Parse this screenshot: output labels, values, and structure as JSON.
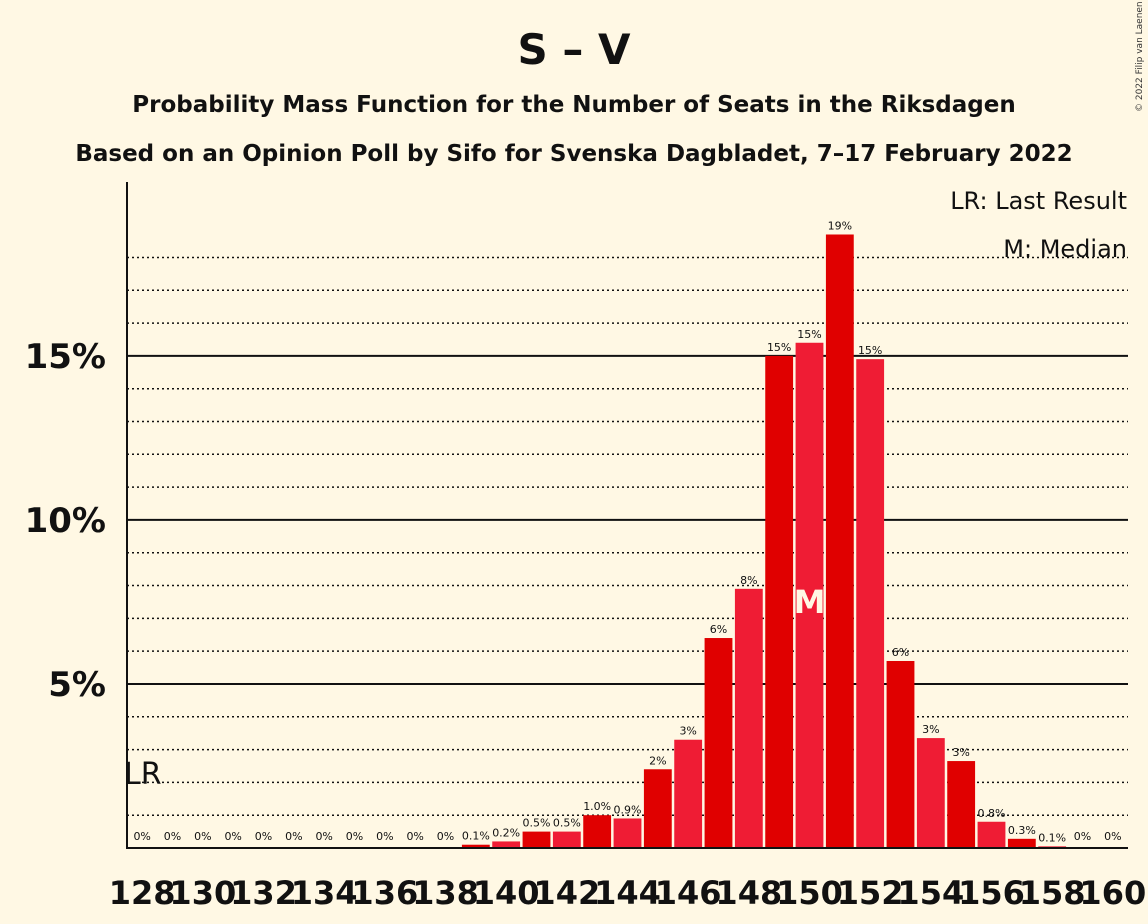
{
  "title": "S – V",
  "subtitle1": "Probability Mass Function for the Number of Seats in the Riksdagen",
  "subtitle2": "Based on an Opinion Poll by Sifo for Svenska Dagbladet, 7–17 February 2022",
  "copyright": "© 2022 Filip van Laenen",
  "legend": {
    "last_result": "LR: Last Result",
    "median": "M: Median"
  },
  "markers": {
    "last_result_label": "LR",
    "last_result_seat": 128,
    "median_label": "M",
    "median_seat": 150
  },
  "colors": {
    "bar_dark": "#e00000",
    "bar_light": "#ef1c34",
    "background": "#fff8e4",
    "axis": "#111111"
  },
  "chart_data": {
    "type": "bar",
    "ylim": [
      0,
      20.3
    ],
    "yticks": [
      {
        "value": 5,
        "label": "5%"
      },
      {
        "value": 10,
        "label": "10%"
      },
      {
        "value": 15,
        "label": "15%"
      }
    ],
    "minor_gridlines": [
      1,
      2,
      3,
      4,
      6,
      7,
      8,
      9,
      11,
      12,
      13,
      14,
      16,
      17,
      18
    ],
    "x_tick_labels": [
      "128",
      "130",
      "132",
      "134",
      "136",
      "138",
      "140",
      "142",
      "144",
      "146",
      "148",
      "150",
      "152",
      "154",
      "156",
      "158",
      "160"
    ],
    "series": [
      {
        "values": [
          {
            "seat": 128,
            "value": 0,
            "label": "0%"
          },
          {
            "seat": 129,
            "value": 0,
            "label": "0%"
          },
          {
            "seat": 130,
            "value": 0,
            "label": "0%"
          },
          {
            "seat": 131,
            "value": 0,
            "label": "0%"
          },
          {
            "seat": 132,
            "value": 0,
            "label": "0%"
          },
          {
            "seat": 133,
            "value": 0,
            "label": "0%"
          },
          {
            "seat": 134,
            "value": 0,
            "label": "0%"
          },
          {
            "seat": 135,
            "value": 0,
            "label": "0%"
          },
          {
            "seat": 136,
            "value": 0,
            "label": "0%"
          },
          {
            "seat": 137,
            "value": 0,
            "label": "0%"
          },
          {
            "seat": 138,
            "value": 0,
            "label": "0%"
          },
          {
            "seat": 139,
            "value": 0.1,
            "label": "0.1%"
          },
          {
            "seat": 140,
            "value": 0.2,
            "label": "0.2%"
          },
          {
            "seat": 141,
            "value": 0.5,
            "label": "0.5%"
          },
          {
            "seat": 142,
            "value": 0.5,
            "label": "0.5%"
          },
          {
            "seat": 143,
            "value": 1.0,
            "label": "1.0%"
          },
          {
            "seat": 144,
            "value": 0.9,
            "label": "0.9%"
          },
          {
            "seat": 145,
            "value": 2.4,
            "label": "2%"
          },
          {
            "seat": 146,
            "value": 3.3,
            "label": "3%"
          },
          {
            "seat": 147,
            "value": 6.4,
            "label": "6%"
          },
          {
            "seat": 148,
            "value": 7.9,
            "label": "8%"
          },
          {
            "seat": 149,
            "value": 15.0,
            "label": "15%"
          },
          {
            "seat": 150,
            "value": 15.4,
            "label": "15%"
          },
          {
            "seat": 151,
            "value": 18.7,
            "label": "19%"
          },
          {
            "seat": 152,
            "value": 14.9,
            "label": "15%"
          },
          {
            "seat": 153,
            "value": 5.7,
            "label": "6%"
          },
          {
            "seat": 154,
            "value": 3.35,
            "label": "3%"
          },
          {
            "seat": 155,
            "value": 2.65,
            "label": "3%"
          },
          {
            "seat": 156,
            "value": 0.8,
            "label": "0.8%"
          },
          {
            "seat": 157,
            "value": 0.28,
            "label": "0.3%"
          },
          {
            "seat": 158,
            "value": 0.05,
            "label": "0.1%"
          },
          {
            "seat": 159,
            "value": 0,
            "label": "0%"
          },
          {
            "seat": 160,
            "value": 0,
            "label": "0%"
          }
        ]
      }
    ]
  }
}
